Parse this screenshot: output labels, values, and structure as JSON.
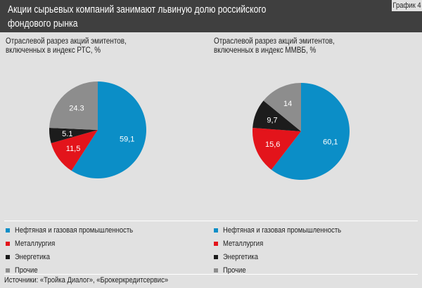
{
  "header": {
    "title": "Акции сырьевых компаний занимают львиную долю российского фондового рынка",
    "badge": "График 4"
  },
  "colors": {
    "background": "#e1e1e1",
    "header": "#3f3f3f",
    "oil_gas": "#0b8ec7",
    "metallurgy": "#e3141b",
    "energy": "#1c1c1c",
    "other": "#8d8d8d"
  },
  "chart_data": [
    {
      "type": "pie",
      "title": "Отраслевой разрез акций эмитентов, включенных в индекс РТС, %",
      "slices": [
        {
          "label": "Нефтяная и газовая промышленность",
          "value": 59.1,
          "display": "59,1",
          "color": "#0b8ec7",
          "label_color": "#ffffff"
        },
        {
          "label": "Металлургия",
          "value": 11.5,
          "display": "11,5",
          "color": "#e3141b",
          "label_color": "#ffffff"
        },
        {
          "label": "Энергетика",
          "value": 5.1,
          "display": "5.1",
          "color": "#1c1c1c",
          "label_color": "#ffffff"
        },
        {
          "label": "Прочие",
          "value": 24.3,
          "display": "24.3",
          "color": "#8d8d8d",
          "label_color": "#ffffff"
        }
      ]
    },
    {
      "type": "pie",
      "title": "Отраслевой разрез акций эмитентов, включенных в индекс ММВБ, %",
      "slices": [
        {
          "label": "Нефтяная и газовая промышленность",
          "value": 60.1,
          "display": "60,1",
          "color": "#0b8ec7",
          "label_color": "#ffffff"
        },
        {
          "label": "Металлургия",
          "value": 15.6,
          "display": "15,6",
          "color": "#e3141b",
          "label_color": "#ffffff"
        },
        {
          "label": "Энергетика",
          "value": 9.7,
          "display": "9,7",
          "color": "#1c1c1c",
          "label_color": "#ffffff"
        },
        {
          "label": "Прочие",
          "value": 14,
          "display": "14",
          "color": "#8d8d8d",
          "label_color": "#ffffff"
        }
      ]
    }
  ],
  "legend": {
    "items": [
      {
        "label": "Нефтяная и газовая промышленность",
        "color": "#0b8ec7"
      },
      {
        "label": "Металлургия",
        "color": "#e3141b"
      },
      {
        "label": "Энергетика",
        "color": "#1c1c1c"
      },
      {
        "label": "Прочие",
        "color": "#8d8d8d"
      }
    ]
  },
  "source": "Источники: «Тройка Диалог», «Брокеркредитсервис»"
}
